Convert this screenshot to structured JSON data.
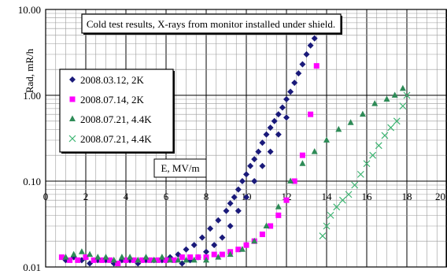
{
  "chart_data": {
    "type": "scatter",
    "title": "Cold test results, X-rays from monitor installed under shield.",
    "xlabel": "E, MV/m",
    "ylabel": "Rad, mR/h",
    "xlim": [
      0,
      20
    ],
    "ylim": [
      0.01,
      10
    ],
    "y_scale": "log",
    "x_ticks": [
      "0",
      "2",
      "4",
      "6",
      "8",
      "10",
      "12",
      "14",
      "16",
      "18",
      "20"
    ],
    "y_ticks": [
      "0.01",
      "0.10",
      "1.00",
      "10.00"
    ],
    "grid": true,
    "legend_position": "left",
    "series": [
      {
        "name": "2008.03.12, 2K",
        "color": "#1a1a7a",
        "marker": "diamond",
        "x": [
          1.0,
          1.4,
          1.8,
          2.2,
          2.6,
          3.0,
          3.4,
          3.8,
          4.2,
          4.6,
          5.0,
          5.4,
          5.8,
          6.2,
          6.6,
          7.0,
          7.4,
          7.8,
          8.2,
          8.6,
          9.0,
          9.2,
          9.4,
          9.6,
          9.8,
          10.0,
          10.2,
          10.4,
          10.6,
          10.8,
          11.0,
          11.2,
          11.4,
          11.6,
          11.8,
          12.0,
          12.2,
          12.4,
          12.6,
          12.8,
          13.0,
          13.2,
          13.4,
          6.8,
          7.2,
          7.6,
          8.0,
          8.4,
          8.8,
          9.2,
          9.6,
          10.0,
          10.4,
          10.8,
          11.2,
          11.6,
          12.0
        ],
        "y": [
          0.012,
          0.013,
          0.012,
          0.011,
          0.012,
          0.012,
          0.011,
          0.012,
          0.012,
          0.011,
          0.012,
          0.012,
          0.012,
          0.013,
          0.014,
          0.016,
          0.018,
          0.022,
          0.028,
          0.035,
          0.045,
          0.055,
          0.065,
          0.08,
          0.1,
          0.12,
          0.15,
          0.18,
          0.22,
          0.28,
          0.35,
          0.42,
          0.5,
          0.6,
          0.72,
          0.9,
          1.1,
          1.4,
          1.8,
          2.3,
          3.0,
          3.8,
          4.6,
          0.011,
          0.012,
          0.013,
          0.015,
          0.018,
          0.022,
          0.03,
          0.045,
          0.065,
          0.1,
          0.15,
          0.22,
          0.35,
          0.55
        ]
      },
      {
        "name": "2008.07.14, 2K",
        "color": "#ff00ff",
        "marker": "square",
        "x": [
          0.8,
          1.2,
          1.6,
          2.0,
          2.4,
          2.8,
          3.2,
          3.6,
          4.0,
          4.4,
          4.8,
          5.2,
          5.6,
          6.0,
          6.4,
          6.8,
          7.2,
          7.6,
          8.0,
          8.4,
          8.8,
          9.2,
          9.6,
          10.0,
          10.4,
          10.8,
          11.2,
          11.6,
          12.0,
          12.4,
          12.8,
          13.2,
          13.5
        ],
        "y": [
          0.013,
          0.012,
          0.012,
          0.013,
          0.012,
          0.012,
          0.012,
          0.011,
          0.012,
          0.012,
          0.012,
          0.012,
          0.012,
          0.012,
          0.012,
          0.013,
          0.013,
          0.013,
          0.013,
          0.014,
          0.014,
          0.015,
          0.016,
          0.018,
          0.02,
          0.024,
          0.03,
          0.04,
          0.06,
          0.1,
          0.2,
          0.6,
          2.2
        ]
      },
      {
        "name": "2008.07.21, 4.4K",
        "color": "#2e8b57",
        "marker": "triangle",
        "x": [
          1.0,
          1.4,
          1.8,
          2.2,
          2.6,
          3.0,
          3.4,
          3.8,
          4.2,
          4.6,
          5.0,
          5.4,
          5.8,
          6.2,
          6.6,
          7.0,
          7.4,
          8.0,
          8.6,
          9.2,
          9.8,
          10.4,
          11.0,
          11.6,
          12.2,
          12.8,
          13.4,
          14.0,
          14.6,
          15.2,
          15.8,
          16.4,
          17.0,
          17.4,
          17.8
        ],
        "y": [
          0.013,
          0.014,
          0.015,
          0.014,
          0.013,
          0.013,
          0.012,
          0.013,
          0.013,
          0.012,
          0.013,
          0.012,
          0.013,
          0.012,
          0.012,
          0.012,
          0.012,
          0.012,
          0.013,
          0.014,
          0.016,
          0.02,
          0.03,
          0.05,
          0.1,
          0.16,
          0.22,
          0.3,
          0.4,
          0.48,
          0.6,
          0.8,
          0.9,
          1.0,
          1.2
        ]
      },
      {
        "name": "2008.07.21, 4.4K",
        "color": "#3cb371",
        "marker": "x",
        "x": [
          13.8,
          14.0,
          14.2,
          14.5,
          14.8,
          15.1,
          15.4,
          15.7,
          16.0,
          16.3,
          16.6,
          16.9,
          17.2,
          17.5,
          17.8,
          18.0
        ],
        "y": [
          0.023,
          0.03,
          0.04,
          0.05,
          0.06,
          0.07,
          0.09,
          0.12,
          0.16,
          0.2,
          0.26,
          0.34,
          0.42,
          0.5,
          0.75,
          1.0
        ]
      }
    ]
  }
}
